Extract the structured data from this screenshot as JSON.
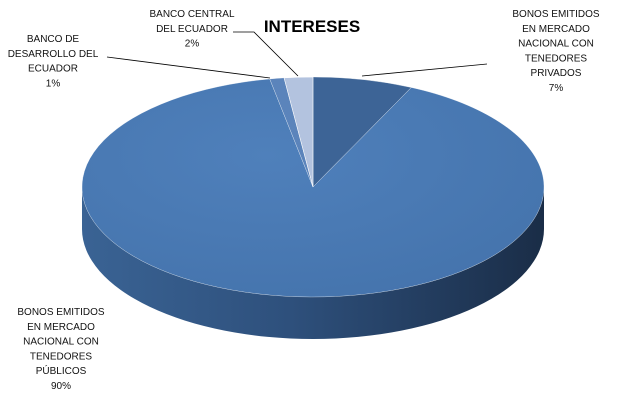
{
  "chart_data": {
    "type": "pie",
    "style": "3d",
    "title": "INTERESES",
    "slices": [
      {
        "label_lines": [
          "BONOS EMITIDOS",
          "EN MERCADO",
          "NACIONAL CON",
          "TENEDORES",
          "PRIVADOS"
        ],
        "pct_text": "7%",
        "value": 7,
        "color": "#3d6496"
      },
      {
        "label_lines": [
          "BONOS EMITIDOS",
          "EN MERCADO",
          "NACIONAL CON",
          "TENEDORES",
          "PÚBLICOS"
        ],
        "pct_text": "90%",
        "value": 90,
        "color": "#4a7ab4"
      },
      {
        "label_lines": [
          "BANCO DE",
          "DESARROLLO DEL",
          "ECUADOR"
        ],
        "pct_text": "1%",
        "value": 1,
        "color": "#5b84bb"
      },
      {
        "label_lines": [
          "BANCO CENTRAL",
          "DEL ECUADOR"
        ],
        "pct_text": "2%",
        "value": 2,
        "color": "#b3c3df"
      }
    ],
    "legend": "none",
    "grid": false
  }
}
